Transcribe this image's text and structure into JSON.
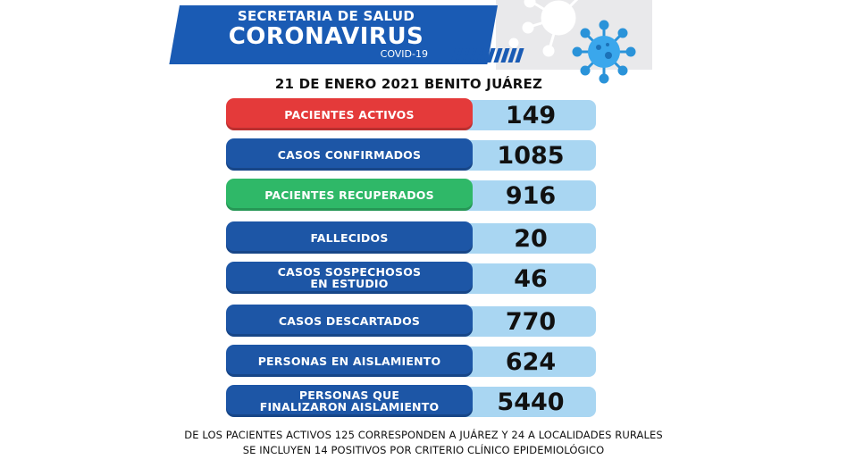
{
  "header": {
    "line1": "SECRETARIA DE SALUD",
    "line2": "CORONAVIRUS",
    "line3": "COVID-19"
  },
  "date": "21 DE ENERO 2021 BENITO JUÁREZ",
  "colors": {
    "header_blue": "#1a5bb4",
    "red": "#e43a3a",
    "blue": "#1d56a6",
    "green": "#2fb868",
    "value_bg": "#a9d6f2"
  },
  "stats": [
    {
      "label": "PACIENTES ACTIVOS",
      "value": "149",
      "color": "#e43a3a"
    },
    {
      "label": "CASOS CONFIRMADOS",
      "value": "1085",
      "color": "#1d56a6"
    },
    {
      "label": "PACIENTES RECUPERADOS",
      "value": "916",
      "color": "#2fb868"
    },
    {
      "label": "FALLECIDOS",
      "value": "20",
      "color": "#1d56a6"
    },
    {
      "label": "CASOS SOSPECHOSOS\nEN ESTUDIO",
      "value": "46",
      "color": "#1d56a6"
    },
    {
      "label": "CASOS DESCARTADOS",
      "value": "770",
      "color": "#1d56a6"
    },
    {
      "label": "PERSONAS EN AISLAMIENTO",
      "value": "624",
      "color": "#1d56a6"
    },
    {
      "label": "PERSONAS QUE\nFINALIZARON AISLAMIENTO",
      "value": "5440",
      "color": "#1d56a6"
    }
  ],
  "footer": {
    "line1": "DE LOS PACIENTES ACTIVOS 125 CORRESPONDEN A JUÁREZ Y 24 A LOCALIDADES RURALES",
    "line2": "SE INCLUYEN 14 POSITIVOS  POR  CRITERIO CLÍNICO EPIDEMIOLÓGICO"
  },
  "icons": [
    "virus-icon"
  ]
}
